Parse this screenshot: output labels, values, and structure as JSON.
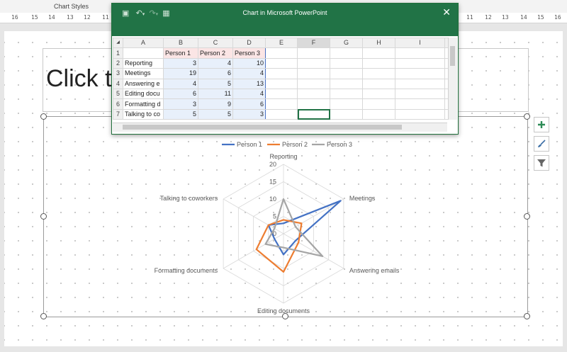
{
  "ribbon": {
    "group_label": "Chart Styles"
  },
  "ruler": {
    "ticks": [
      "16",
      "15",
      "14",
      "13",
      "12",
      "11",
      "11",
      "12",
      "13",
      "14",
      "15",
      "16"
    ]
  },
  "slide": {
    "title_placeholder": "Click to"
  },
  "excel": {
    "title": "Chart in Microsoft PowerPoint",
    "columns": [
      "A",
      "B",
      "C",
      "D",
      "E",
      "F",
      "G",
      "H",
      "I"
    ],
    "rows": [
      {
        "n": "1",
        "a": "",
        "b": "Person 1",
        "c": "Person 2",
        "d": "Person 3"
      },
      {
        "n": "2",
        "a": "Reporting",
        "b": "3",
        "c": "4",
        "d": "10"
      },
      {
        "n": "3",
        "a": "Meetings",
        "b": "19",
        "c": "6",
        "d": "4"
      },
      {
        "n": "4",
        "a": "Answering e",
        "b": "4",
        "c": "5",
        "d": "13"
      },
      {
        "n": "5",
        "a": "Editing docu",
        "b": "6",
        "c": "11",
        "d": "4"
      },
      {
        "n": "6",
        "a": "Formatting d",
        "b": "3",
        "c": "9",
        "d": "6"
      },
      {
        "n": "7",
        "a": "Talking to co",
        "b": "5",
        "c": "5",
        "d": "3"
      }
    ]
  },
  "chart_data": {
    "type": "radar",
    "categories": [
      "Reporting",
      "Meetings",
      "Answering emails",
      "Editing documents",
      "Formatting documents",
      "Talking to coworkers"
    ],
    "series": [
      {
        "name": "Person 1",
        "values": [
          3,
          19,
          4,
          6,
          3,
          5
        ],
        "color": "#4472c4"
      },
      {
        "name": "Person 2",
        "values": [
          4,
          6,
          5,
          11,
          9,
          5
        ],
        "color": "#ed7d31"
      },
      {
        "name": "Person 3",
        "values": [
          10,
          4,
          13,
          4,
          6,
          3
        ],
        "color": "#a5a5a5"
      }
    ],
    "ticks": [
      "0",
      "5",
      "10",
      "15",
      "20"
    ],
    "rmax": 20,
    "legend_position": "top",
    "grid": true
  },
  "icons": {
    "add": "plus-icon",
    "style": "brush-icon",
    "filter": "filter-icon"
  }
}
